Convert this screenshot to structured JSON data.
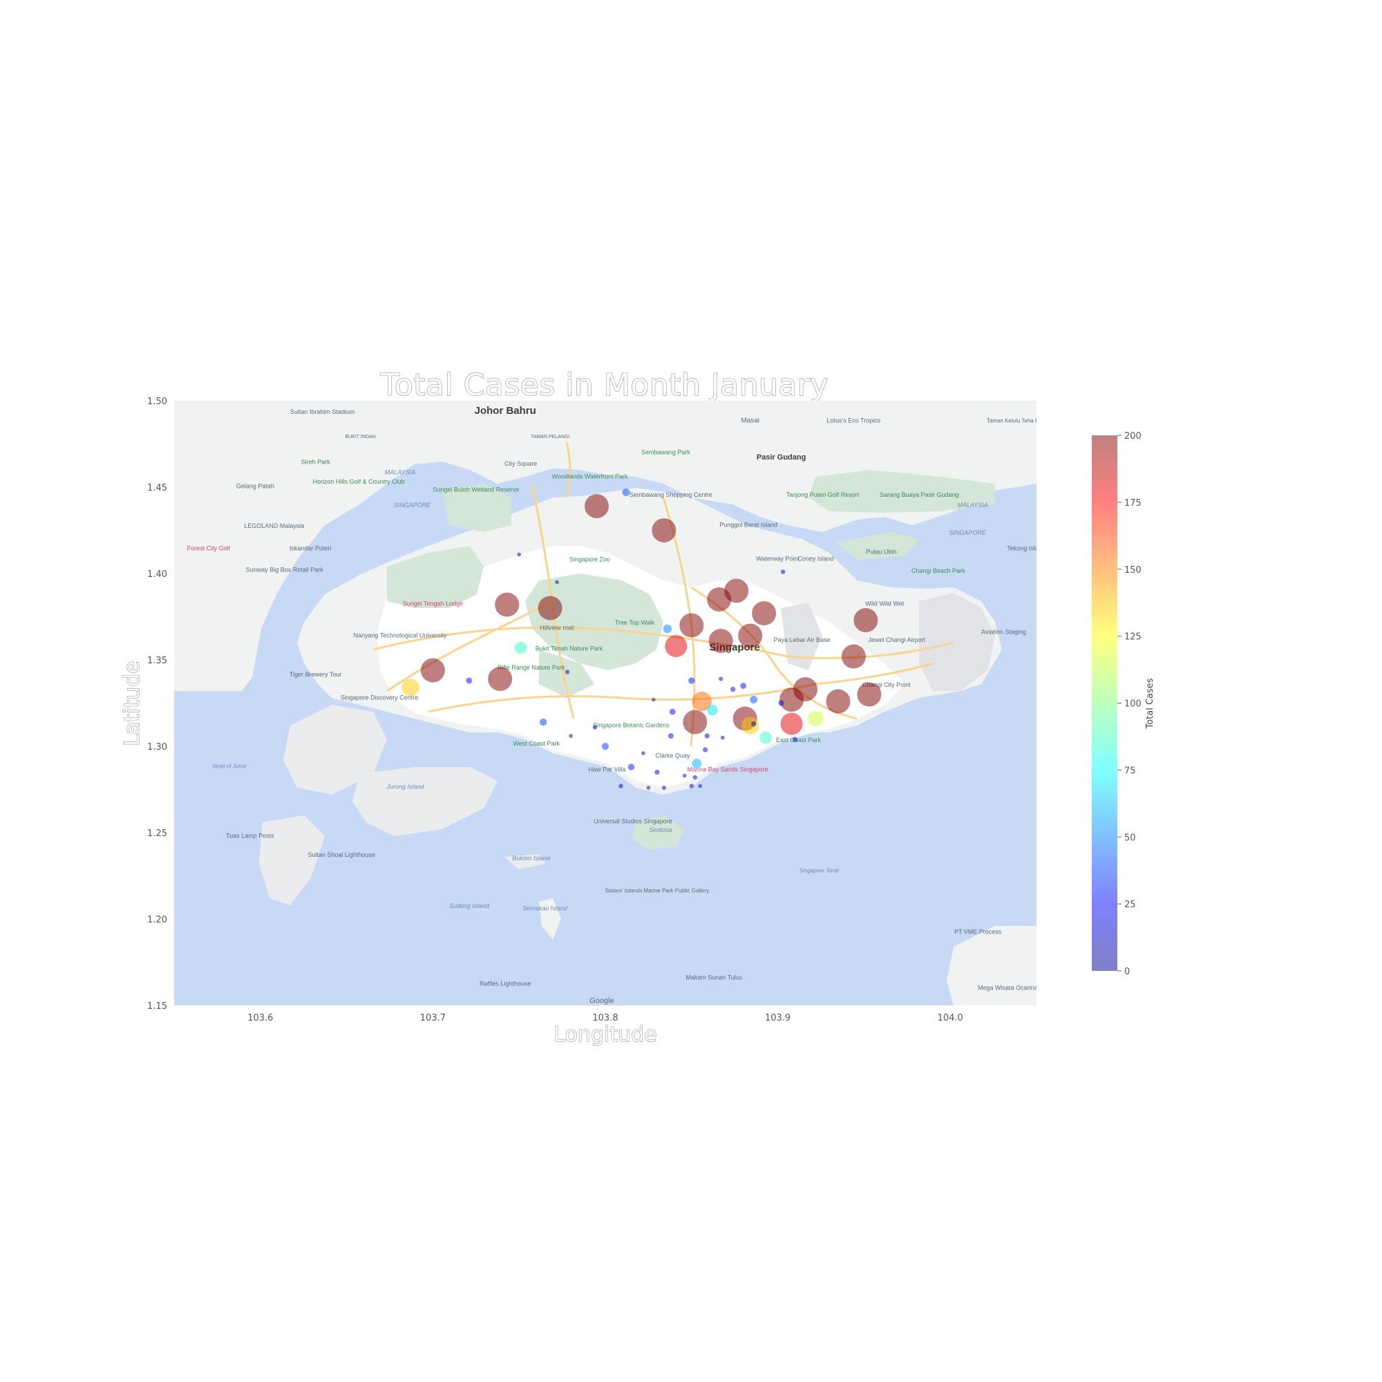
{
  "chart_data": {
    "type": "scatter",
    "title": "Total Cases in Month January",
    "xlabel": "Longitude",
    "ylabel": "Latitude",
    "xlim": [
      103.55,
      104.05
    ],
    "ylim": [
      1.15,
      1.5
    ],
    "xticks": [
      "103.6",
      "103.7",
      "103.8",
      "103.9",
      "104.0"
    ],
    "yticks": [
      "1.15",
      "1.20",
      "1.25",
      "1.30",
      "1.35",
      "1.40",
      "1.45",
      "1.50"
    ],
    "grid": false,
    "colorscale": "jet",
    "colorbar": {
      "label": "Total Cases",
      "min": 0,
      "max": 200,
      "ticks": [
        "0",
        "25",
        "50",
        "75",
        "100",
        "125",
        "150",
        "175",
        "200"
      ]
    },
    "marker_opacity": 0.5,
    "points": [
      {
        "lon": 103.866,
        "lat": 1.385,
        "cases": 200
      },
      {
        "lon": 103.884,
        "lat": 1.364,
        "cases": 200
      },
      {
        "lon": 103.867,
        "lat": 1.361,
        "cases": 200
      },
      {
        "lon": 103.951,
        "lat": 1.373,
        "cases": 200
      },
      {
        "lon": 103.944,
        "lat": 1.352,
        "cases": 200
      },
      {
        "lon": 103.768,
        "lat": 1.38,
        "cases": 200
      },
      {
        "lon": 103.892,
        "lat": 1.377,
        "cases": 200
      },
      {
        "lon": 103.908,
        "lat": 1.327,
        "cases": 200
      },
      {
        "lon": 103.916,
        "lat": 1.333,
        "cases": 200
      },
      {
        "lon": 103.935,
        "lat": 1.326,
        "cases": 200
      },
      {
        "lon": 103.953,
        "lat": 1.33,
        "cases": 200
      },
      {
        "lon": 103.876,
        "lat": 1.39,
        "cases": 200
      },
      {
        "lon": 103.834,
        "lat": 1.425,
        "cases": 200
      },
      {
        "lon": 103.795,
        "lat": 1.439,
        "cases": 200
      },
      {
        "lon": 103.85,
        "lat": 1.37,
        "cases": 200
      },
      {
        "lon": 103.852,
        "lat": 1.314,
        "cases": 200
      },
      {
        "lon": 103.743,
        "lat": 1.382,
        "cases": 200
      },
      {
        "lon": 103.7,
        "lat": 1.344,
        "cases": 200
      },
      {
        "lon": 103.739,
        "lat": 1.339,
        "cases": 200
      },
      {
        "lon": 103.881,
        "lat": 1.316,
        "cases": 200
      },
      {
        "lon": 103.841,
        "lat": 1.358,
        "cases": 180
      },
      {
        "lon": 103.908,
        "lat": 1.313,
        "cases": 180
      },
      {
        "lon": 103.856,
        "lat": 1.326,
        "cases": 155
      },
      {
        "lon": 103.884,
        "lat": 1.312,
        "cases": 135
      },
      {
        "lon": 103.687,
        "lat": 1.334,
        "cases": 135
      },
      {
        "lon": 103.922,
        "lat": 1.316,
        "cases": 115
      },
      {
        "lon": 103.893,
        "lat": 1.305,
        "cases": 85
      },
      {
        "lon": 103.751,
        "lat": 1.357,
        "cases": 85
      },
      {
        "lon": 103.862,
        "lat": 1.321,
        "cases": 70
      },
      {
        "lon": 103.853,
        "lat": 1.29,
        "cases": 60
      },
      {
        "lon": 103.836,
        "lat": 1.368,
        "cases": 50
      },
      {
        "lon": 103.812,
        "lat": 1.447,
        "cases": 40
      },
      {
        "lon": 103.886,
        "lat": 1.327,
        "cases": 40
      },
      {
        "lon": 103.764,
        "lat": 1.314,
        "cases": 35
      },
      {
        "lon": 103.8,
        "lat": 1.3,
        "cases": 35
      },
      {
        "lon": 103.815,
        "lat": 1.288,
        "cases": 30
      },
      {
        "lon": 103.85,
        "lat": 1.338,
        "cases": 30
      },
      {
        "lon": 103.88,
        "lat": 1.335,
        "cases": 25
      },
      {
        "lon": 103.839,
        "lat": 1.32,
        "cases": 25
      },
      {
        "lon": 103.721,
        "lat": 1.338,
        "cases": 25
      },
      {
        "lon": 103.902,
        "lat": 1.325,
        "cases": 20
      },
      {
        "lon": 103.838,
        "lat": 1.306,
        "cases": 20
      },
      {
        "lon": 103.858,
        "lat": 1.298,
        "cases": 15
      },
      {
        "lon": 103.83,
        "lat": 1.285,
        "cases": 15
      },
      {
        "lon": 103.859,
        "lat": 1.306,
        "cases": 15
      },
      {
        "lon": 103.874,
        "lat": 1.333,
        "cases": 15
      },
      {
        "lon": 103.886,
        "lat": 1.313,
        "cases": 15
      },
      {
        "lon": 103.91,
        "lat": 1.304,
        "cases": 15
      },
      {
        "lon": 103.903,
        "lat": 1.401,
        "cases": 10
      },
      {
        "lon": 103.778,
        "lat": 1.343,
        "cases": 10
      },
      {
        "lon": 103.794,
        "lat": 1.311,
        "cases": 10
      },
      {
        "lon": 103.85,
        "lat": 1.277,
        "cases": 10
      },
      {
        "lon": 103.809,
        "lat": 1.277,
        "cases": 10
      },
      {
        "lon": 103.852,
        "lat": 1.282,
        "cases": 10
      },
      {
        "lon": 103.867,
        "lat": 1.339,
        "cases": 8
      },
      {
        "lon": 103.834,
        "lat": 1.276,
        "cases": 8
      },
      {
        "lon": 103.825,
        "lat": 1.276,
        "cases": 5
      },
      {
        "lon": 103.78,
        "lat": 1.306,
        "cases": 5
      },
      {
        "lon": 103.828,
        "lat": 1.327,
        "cases": 5
      },
      {
        "lon": 103.868,
        "lat": 1.305,
        "cases": 5
      },
      {
        "lon": 103.772,
        "lat": 1.395,
        "cases": 5
      },
      {
        "lon": 103.75,
        "lat": 1.411,
        "cases": 5
      },
      {
        "lon": 103.846,
        "lat": 1.283,
        "cases": 5
      },
      {
        "lon": 103.855,
        "lat": 1.277,
        "cases": 5
      },
      {
        "lon": 103.822,
        "lat": 1.296,
        "cases": 5
      }
    ]
  },
  "basemap": {
    "colors": {
      "sea": "#c8d9f5",
      "land": "#f1f2f2",
      "urban": "#ffffff",
      "park": "#d3e6d8",
      "road": "#f8d48f",
      "airport": "#e1e3e6",
      "industrial": "#ebecee"
    },
    "labels": [
      {
        "text": "Johor Bahru",
        "lon": 103.742,
        "lat": 1.4925,
        "style": "lblb",
        "size": 15
      },
      {
        "text": "Singapore",
        "lon": 103.875,
        "lat": 1.3555,
        "style": "lblb",
        "size": 15
      },
      {
        "text": "Pasir Gudang",
        "lon": 103.902,
        "lat": 1.466,
        "style": "lblb",
        "size": 11
      },
      {
        "text": "Masai",
        "lon": 103.884,
        "lat": 1.4875,
        "style": "lbl",
        "size": 10
      },
      {
        "text": "Sultan Ibrahim Stadium",
        "lon": 103.636,
        "lat": 1.4925,
        "style": "lbl",
        "size": 9
      },
      {
        "text": "BUKIT INDAH",
        "lon": 103.658,
        "lat": 1.4785,
        "style": "lbl",
        "size": 7
      },
      {
        "text": "TAMAN PELANGI",
        "lon": 103.768,
        "lat": 1.4785,
        "style": "lbl",
        "size": 7
      },
      {
        "text": "City Square",
        "lon": 103.751,
        "lat": 1.4625,
        "style": "lbl",
        "size": 9
      },
      {
        "text": "Woodlands Waterfront Park",
        "lon": 103.791,
        "lat": 1.455,
        "style": "lblg",
        "size": 9
      },
      {
        "text": "Sembawang Shopping Centre",
        "lon": 103.838,
        "lat": 1.4445,
        "style": "lbl",
        "size": 9
      },
      {
        "text": "Sembawang Park",
        "lon": 103.835,
        "lat": 1.469,
        "style": "lblg",
        "size": 9
      },
      {
        "text": "Lotus's Eco Tropics",
        "lon": 103.944,
        "lat": 1.4875,
        "style": "lbl",
        "size": 9
      },
      {
        "text": "Tanjong Puteri Golf Resort",
        "lon": 103.926,
        "lat": 1.4445,
        "style": "lblg",
        "size": 9
      },
      {
        "text": "Sarang Buaya Pasir Gudang",
        "lon": 103.982,
        "lat": 1.4445,
        "style": "lblg",
        "size": 9
      },
      {
        "text": "Gelang Patah",
        "lon": 103.597,
        "lat": 1.4495,
        "style": "lbl",
        "size": 9
      },
      {
        "text": "Sireh Park",
        "lon": 103.632,
        "lat": 1.4635,
        "style": "lblg",
        "size": 9
      },
      {
        "text": "Horizon Hills Golf & Country Club",
        "lon": 103.657,
        "lat": 1.452,
        "style": "lblg",
        "size": 9
      },
      {
        "text": "LEGOLAND Malaysia",
        "lon": 103.608,
        "lat": 1.4265,
        "style": "lbl",
        "size": 9
      },
      {
        "text": "Iskandar Puteri",
        "lon": 103.629,
        "lat": 1.4135,
        "style": "lbl",
        "size": 9
      },
      {
        "text": "Forest City Golf",
        "lon": 103.57,
        "lat": 1.4135,
        "style": "lblp",
        "size": 9
      },
      {
        "text": "Sunway Big Box Retail Park",
        "lon": 103.614,
        "lat": 1.401,
        "style": "lbl",
        "size": 9
      },
      {
        "text": "Sungei Buloh Wetland Reserve",
        "lon": 103.725,
        "lat": 1.4475,
        "style": "lblg",
        "size": 9
      },
      {
        "text": "Singapore Zoo",
        "lon": 103.791,
        "lat": 1.407,
        "style": "lblg",
        "size": 9
      },
      {
        "text": "Punggol Barat Island",
        "lon": 103.883,
        "lat": 1.427,
        "style": "lbl",
        "size": 9
      },
      {
        "text": "Waterway Point",
        "lon": 103.9,
        "lat": 1.4075,
        "style": "lbl",
        "size": 9
      },
      {
        "text": "Coney Island",
        "lon": 103.922,
        "lat": 1.4075,
        "style": "lbl",
        "size": 9
      },
      {
        "text": "Pulau Ubin",
        "lon": 103.96,
        "lat": 1.4115,
        "style": "lbl",
        "size": 9
      },
      {
        "text": "Changi Beach Park",
        "lon": 103.993,
        "lat": 1.4005,
        "style": "lblg",
        "size": 9
      },
      {
        "text": "Tekong Island",
        "lon": 104.044,
        "lat": 1.4135,
        "style": "lbl",
        "size": 9
      },
      {
        "text": "Wild Wild Wet",
        "lon": 103.962,
        "lat": 1.3815,
        "style": "lbl",
        "size": 9
      },
      {
        "text": "Jewel Changi Airport",
        "lon": 103.969,
        "lat": 1.3605,
        "style": "lbl",
        "size": 9
      },
      {
        "text": "Paya Lebar Air Base",
        "lon": 103.914,
        "lat": 1.3605,
        "style": "lbl",
        "size": 9
      },
      {
        "text": "Changi City Point",
        "lon": 103.963,
        "lat": 1.3345,
        "style": "lbl",
        "size": 9
      },
      {
        "text": "Aviation Staging",
        "lon": 104.031,
        "lat": 1.365,
        "style": "lbl",
        "size": 9
      },
      {
        "text": "Tree Top Walk",
        "lon": 103.817,
        "lat": 1.3705,
        "style": "lblg",
        "size": 9
      },
      {
        "text": "Hillview mall",
        "lon": 103.772,
        "lat": 1.3675,
        "style": "lbl",
        "size": 9
      },
      {
        "text": "Bukit Timah Nature Park",
        "lon": 103.779,
        "lat": 1.3555,
        "style": "lblg",
        "size": 9
      },
      {
        "text": "Sungei Tengah Lodge",
        "lon": 103.7,
        "lat": 1.3815,
        "style": "lblp",
        "size": 9
      },
      {
        "text": "Nanyang Technological University",
        "lon": 103.681,
        "lat": 1.363,
        "style": "lbl",
        "size": 9
      },
      {
        "text": "Rifle Range Nature Park",
        "lon": 103.757,
        "lat": 1.3445,
        "style": "lblg",
        "size": 9
      },
      {
        "text": "Tiger Brewery Tour",
        "lon": 103.632,
        "lat": 1.3405,
        "style": "lbl",
        "size": 9
      },
      {
        "text": "Singapore Discovery Centre",
        "lon": 103.669,
        "lat": 1.327,
        "style": "lbl",
        "size": 9
      },
      {
        "text": "Singapore Botanic Gardens",
        "lon": 103.815,
        "lat": 1.311,
        "style": "lblg",
        "size": 9
      },
      {
        "text": "West Coast Park",
        "lon": 103.76,
        "lat": 1.3005,
        "style": "lblg",
        "size": 9
      },
      {
        "text": "Haw Par Villa",
        "lon": 103.801,
        "lat": 1.2855,
        "style": "lbl",
        "size": 9
      },
      {
        "text": "Clarke Quay",
        "lon": 103.839,
        "lat": 1.2935,
        "style": "lbl",
        "size": 9
      },
      {
        "text": "Marina Bay Sands Singapore",
        "lon": 103.871,
        "lat": 1.2855,
        "style": "lblp",
        "size": 9
      },
      {
        "text": "East Coast Park",
        "lon": 103.912,
        "lat": 1.3025,
        "style": "lblg",
        "size": 9
      },
      {
        "text": "Jurong Island",
        "lon": 103.684,
        "lat": 1.2755,
        "style": "lblw",
        "size": 9
      },
      {
        "text": "Universal Studios Singapore",
        "lon": 103.816,
        "lat": 1.2555,
        "style": "lbl",
        "size": 9
      },
      {
        "text": "Sentosa",
        "lon": 103.832,
        "lat": 1.2505,
        "style": "lblw",
        "size": 9
      },
      {
        "text": "Tuas Lamp Posts",
        "lon": 103.594,
        "lat": 1.247,
        "style": "lbl",
        "size": 9
      },
      {
        "text": "Sultan Shoal Lighthouse",
        "lon": 103.647,
        "lat": 1.236,
        "style": "lbl",
        "size": 9
      },
      {
        "text": "Bukom Island",
        "lon": 103.757,
        "lat": 1.234,
        "style": "lblw",
        "size": 9
      },
      {
        "text": "Sisters' Islands Marine Park Public Gallery",
        "lon": 103.83,
        "lat": 1.2155,
        "style": "lbl",
        "size": 8
      },
      {
        "text": "Sudong Island",
        "lon": 103.721,
        "lat": 1.2065,
        "style": "lblw",
        "size": 9
      },
      {
        "text": "Semakau Island",
        "lon": 103.765,
        "lat": 1.205,
        "style": "lblw",
        "size": 9
      },
      {
        "text": "PT VME Process",
        "lon": 104.016,
        "lat": 1.1915,
        "style": "lbl",
        "size": 9
      },
      {
        "text": "Raffles Lighthouse",
        "lon": 103.742,
        "lat": 1.1615,
        "style": "lbl",
        "size": 9
      },
      {
        "text": "Makam Sunan Tulus",
        "lon": 103.863,
        "lat": 1.165,
        "style": "lbl",
        "size": 9
      },
      {
        "text": "Mega Wisata Ocarina Batam",
        "lon": 104.039,
        "lat": 1.159,
        "style": "lbl",
        "size": 9
      },
      {
        "text": "Taman Kelulu Teha Kampung",
        "lon": 104.042,
        "lat": 1.4875,
        "style": "lbl",
        "size": 8
      },
      {
        "text": "Singapore Strait",
        "lon": 103.924,
        "lat": 1.227,
        "style": "lblw",
        "size": 8
      },
      {
        "text": "MALAYSIA",
        "lon": 103.681,
        "lat": 1.4575,
        "style": "lblw",
        "size": 9
      },
      {
        "text": "SINGAPORE",
        "lon": 103.688,
        "lat": 1.4385,
        "style": "lblw",
        "size": 9
      },
      {
        "text": "MALAYSIA",
        "lon": 104.013,
        "lat": 1.4385,
        "style": "lblw",
        "size": 9
      },
      {
        "text": "SINGAPORE",
        "lon": 104.01,
        "lat": 1.4225,
        "style": "lblw",
        "size": 9
      },
      {
        "text": "Strait of Johor",
        "lon": 103.582,
        "lat": 1.2875,
        "style": "lblw",
        "size": 8
      },
      {
        "text": "Google",
        "lon": 103.798,
        "lat": 1.1515,
        "style": "lbl",
        "size": 11
      }
    ]
  }
}
